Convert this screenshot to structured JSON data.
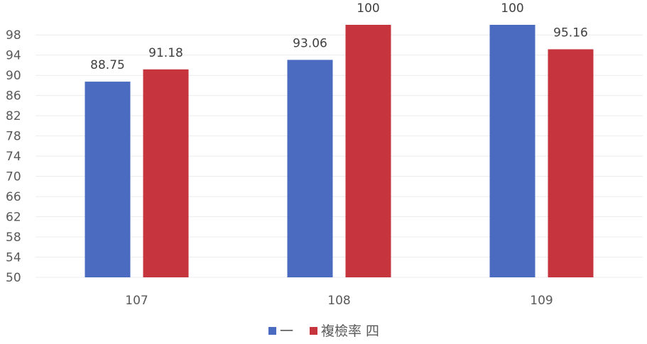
{
  "chart_data": {
    "type": "bar",
    "title": "",
    "xlabel": "",
    "ylabel": "",
    "categories": [
      "107",
      "108",
      "109"
    ],
    "series": [
      {
        "name": "一",
        "color": "#4A6BC0",
        "values": [
          88.75,
          93.06,
          100
        ]
      },
      {
        "name": "複檢率 四",
        "color": "#C6343E",
        "values": [
          91.18,
          100,
          95.16
        ]
      }
    ],
    "data_labels": [
      [
        "88.75",
        "93.06",
        "100"
      ],
      [
        "91.18",
        "100",
        "95.16"
      ]
    ],
    "ylim": [
      50,
      100
    ],
    "yticks": [
      50,
      54,
      58,
      62,
      66,
      70,
      74,
      78,
      82,
      86,
      90,
      94,
      98
    ],
    "grid": true,
    "legend_position": "bottom"
  }
}
